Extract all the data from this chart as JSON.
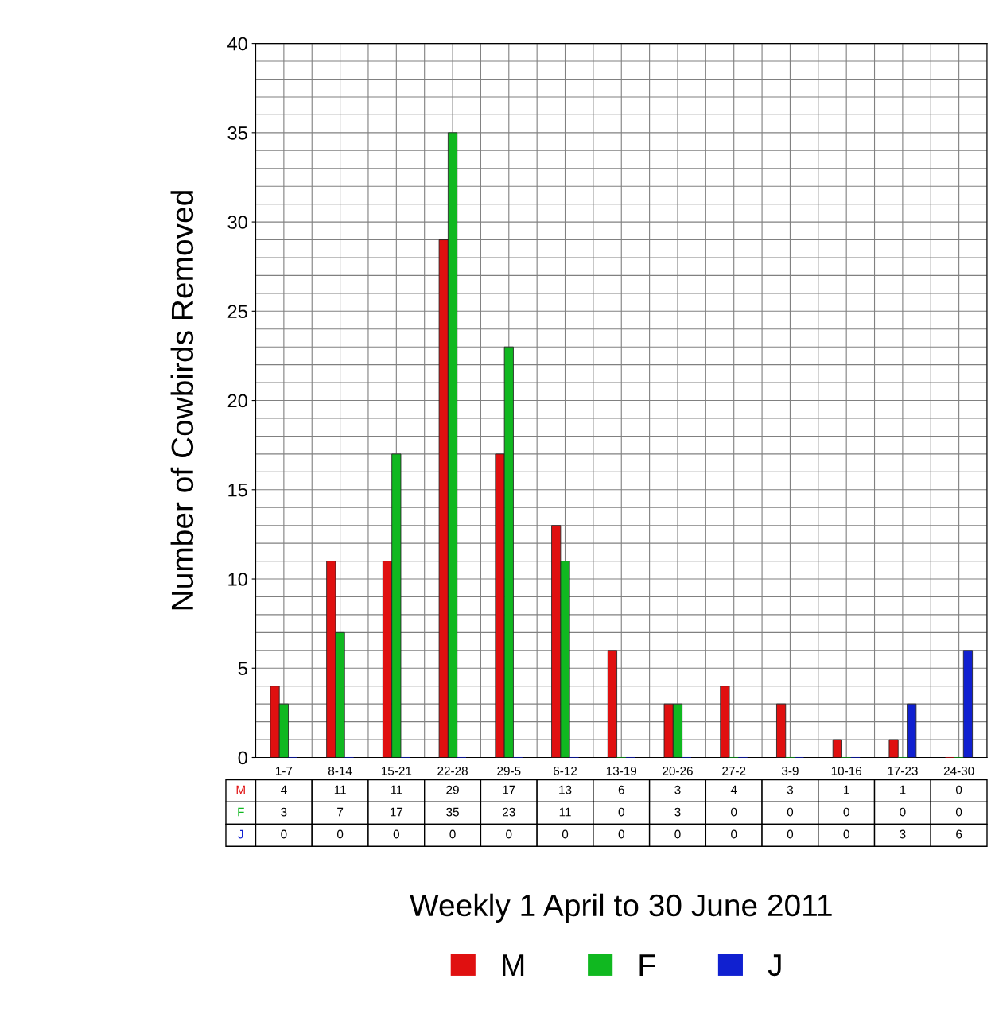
{
  "chart_data": {
    "type": "bar",
    "ylabel": "Number of Cowbirds Removed",
    "xlabel": "Weekly 1 April to 30 June 2011",
    "categories": [
      "1-7",
      "8-14",
      "15-21",
      "22-28",
      "29-5",
      "6-12",
      "13-19",
      "20-26",
      "27-2",
      "3-9",
      "10-16",
      "17-23",
      "24-30"
    ],
    "series": [
      {
        "name": "M",
        "color": "#e01010",
        "values": [
          4,
          11,
          11,
          29,
          17,
          13,
          6,
          3,
          4,
          3,
          1,
          1,
          0
        ]
      },
      {
        "name": "F",
        "color": "#10b820",
        "values": [
          3,
          7,
          17,
          35,
          23,
          11,
          0,
          3,
          0,
          0,
          0,
          0,
          0
        ]
      },
      {
        "name": "J",
        "color": "#1020d0",
        "values": [
          0,
          0,
          0,
          0,
          0,
          0,
          0,
          0,
          0,
          0,
          0,
          3,
          6
        ]
      }
    ],
    "ylim": [
      0,
      40
    ],
    "yticks": [
      0,
      5,
      10,
      15,
      20,
      25,
      30,
      35,
      40
    ],
    "grid": true,
    "legend": "bottom",
    "data_labels": true
  }
}
